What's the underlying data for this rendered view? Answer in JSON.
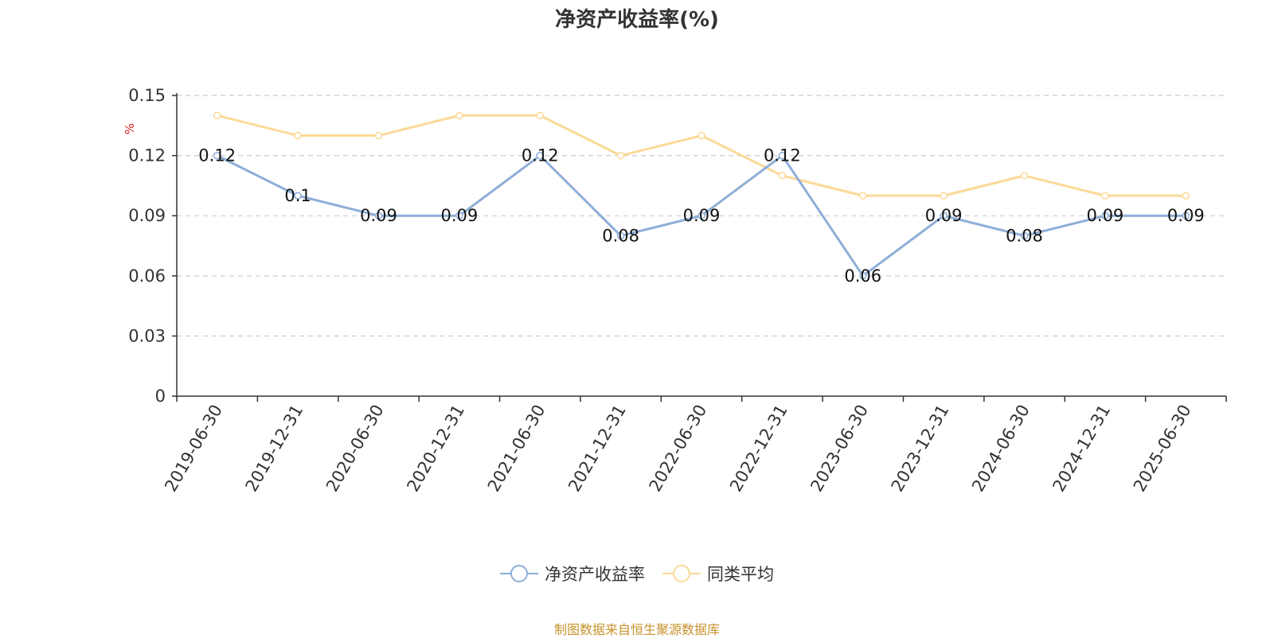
{
  "chart_data": {
    "type": "line",
    "title": "净资产收益率(%)",
    "ylabel": "%",
    "ylim": [
      0,
      0.15
    ],
    "yticks": [
      "0",
      "0.03",
      "0.06",
      "0.09",
      "0.12",
      "0.15"
    ],
    "grid": true,
    "legend_position": "bottom-center",
    "categories": [
      "2019-06-30",
      "2019-12-31",
      "2020-06-30",
      "2020-12-31",
      "2021-06-30",
      "2021-12-31",
      "2022-06-30",
      "2022-12-31",
      "2023-06-30",
      "2023-12-31",
      "2024-06-30",
      "2024-12-31",
      "2025-06-30"
    ],
    "series": [
      {
        "name": "净资产收益率",
        "color": "#8eaed8",
        "values": [
          0.12,
          0.1,
          0.09,
          0.09,
          0.12,
          0.08,
          0.09,
          0.12,
          0.06,
          0.09,
          0.08,
          0.09,
          0.09
        ],
        "labels": [
          "0.12",
          "0.1",
          "0.09",
          "0.09",
          "0.12",
          "0.08",
          "0.09",
          "0.12",
          "0.06",
          "0.09",
          "0.08",
          "0.09",
          "0.09"
        ]
      },
      {
        "name": "同类平均",
        "color": "#fbd996",
        "values": [
          0.14,
          0.13,
          0.13,
          0.14,
          0.14,
          0.12,
          0.13,
          0.11,
          0.1,
          0.1,
          0.11,
          0.1,
          0.1
        ]
      }
    ]
  },
  "source_note": "制图数据来自恒生聚源数据库"
}
